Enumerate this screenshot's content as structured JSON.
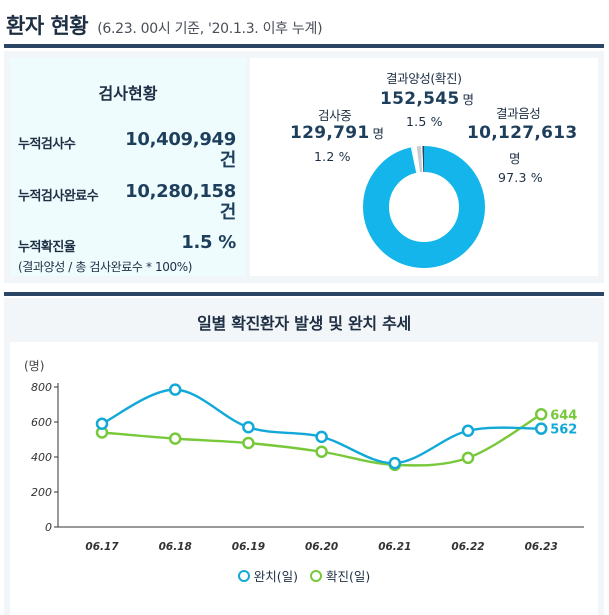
{
  "header": {
    "title": "환자 현황",
    "subtitle": "(6.23. 00시 기준, '20.1.3. 이후 누계)"
  },
  "stats": {
    "title": "검사현황",
    "items": [
      {
        "label": "누적검사수",
        "value": "10,409,949",
        "unit": "건"
      },
      {
        "label": "누적검사완료수",
        "value": "10,280,158",
        "unit": "건"
      },
      {
        "label": "누적확진율",
        "value": "1.5 %"
      }
    ],
    "note": "(결과양성 / 총 검사완료수 * 100%)"
  },
  "donut": {
    "segments": [
      {
        "label": "검사중",
        "value": "129,791",
        "unit": "명",
        "pct_label": "1.2 %",
        "pct": 1.2,
        "color": "#c8ccd0"
      },
      {
        "label": "결과양성(확진)",
        "value": "152,545",
        "unit": "명",
        "pct_label": "1.5 %",
        "pct": 1.5,
        "color": "#2b4665"
      },
      {
        "label": "결과음성",
        "value": "10,127,613",
        "unit": "명",
        "pct_label": "97.3 %",
        "pct": 97.3,
        "color": "#13b5ea"
      }
    ]
  },
  "chart": {
    "title": "일별 확진환자 발생 및 완치 추세"
  },
  "chart_data": {
    "type": "line",
    "categories": [
      "06.17",
      "06.18",
      "06.19",
      "06.20",
      "06.21",
      "06.22",
      "06.23"
    ],
    "series": [
      {
        "name": "완치(일)",
        "values": [
          590,
          785,
          570,
          515,
          365,
          550,
          562
        ],
        "color": "#12a9d8",
        "end_label": "562"
      },
      {
        "name": "확진(일)",
        "values": [
          540,
          505,
          480,
          430,
          355,
          395,
          644
        ],
        "color": "#77c93a",
        "end_label": "644"
      }
    ],
    "ylabel": "(명)",
    "ylim": [
      0,
      800
    ],
    "yticks": [
      0,
      200,
      400,
      600,
      800
    ],
    "grid": false,
    "legend": "bottom"
  }
}
